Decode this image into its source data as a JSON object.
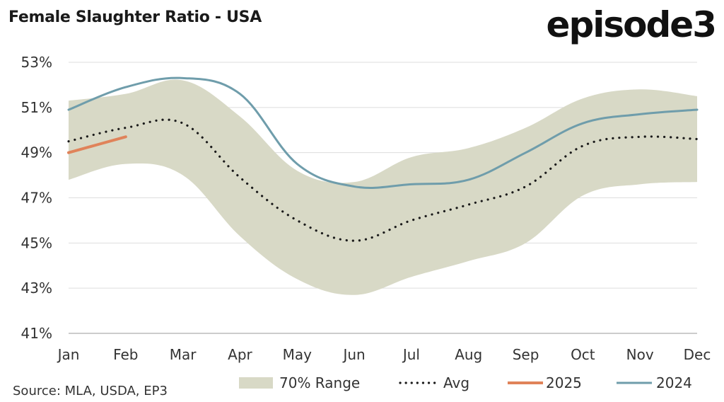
{
  "header": {
    "title": "Female Slaughter Ratio - USA",
    "logo": "episode3"
  },
  "footer": {
    "source": "Source: MLA, USDA, EP3"
  },
  "chart_data": {
    "type": "line",
    "title": "Female Slaughter Ratio - USA",
    "xlabel": "",
    "ylabel": "",
    "categories": [
      "Jan",
      "Feb",
      "Mar",
      "Apr",
      "May",
      "Jun",
      "Jul",
      "Aug",
      "Sep",
      "Oct",
      "Nov",
      "Dec"
    ],
    "y_ticks": [
      "53%",
      "51%",
      "49%",
      "47%",
      "45%",
      "43%",
      "41%"
    ],
    "ylim": [
      41,
      53
    ],
    "y_unit": "%",
    "grid": "horizontal",
    "legend_position": "bottom",
    "range_band": {
      "name": "70% Range",
      "lower": [
        47.8,
        48.5,
        48.0,
        45.3,
        43.4,
        42.7,
        43.5,
        44.2,
        45.0,
        47.1,
        47.6,
        47.7
      ],
      "upper": [
        51.3,
        51.6,
        52.2,
        50.6,
        48.2,
        47.7,
        48.8,
        49.2,
        50.1,
        51.4,
        51.8,
        51.5
      ],
      "color": "#d8d9c6"
    },
    "series": [
      {
        "name": "Avg",
        "style": "dotted",
        "color": "#1a1a1a",
        "values": [
          49.5,
          50.1,
          50.3,
          47.9,
          46.0,
          45.1,
          46.0,
          46.7,
          47.5,
          49.3,
          49.7,
          49.6
        ]
      },
      {
        "name": "2025",
        "style": "solid",
        "color": "#e0835a",
        "values": [
          49.0,
          49.7,
          null,
          null,
          null,
          null,
          null,
          null,
          null,
          null,
          null,
          null
        ]
      },
      {
        "name": "2024",
        "style": "solid",
        "color": "#6f9dab",
        "values": [
          50.9,
          51.9,
          52.3,
          51.6,
          48.5,
          47.5,
          47.6,
          47.8,
          49.0,
          50.3,
          50.7,
          50.9
        ]
      }
    ],
    "legend": [
      "70% Range",
      "Avg",
      "2025",
      "2024"
    ]
  }
}
